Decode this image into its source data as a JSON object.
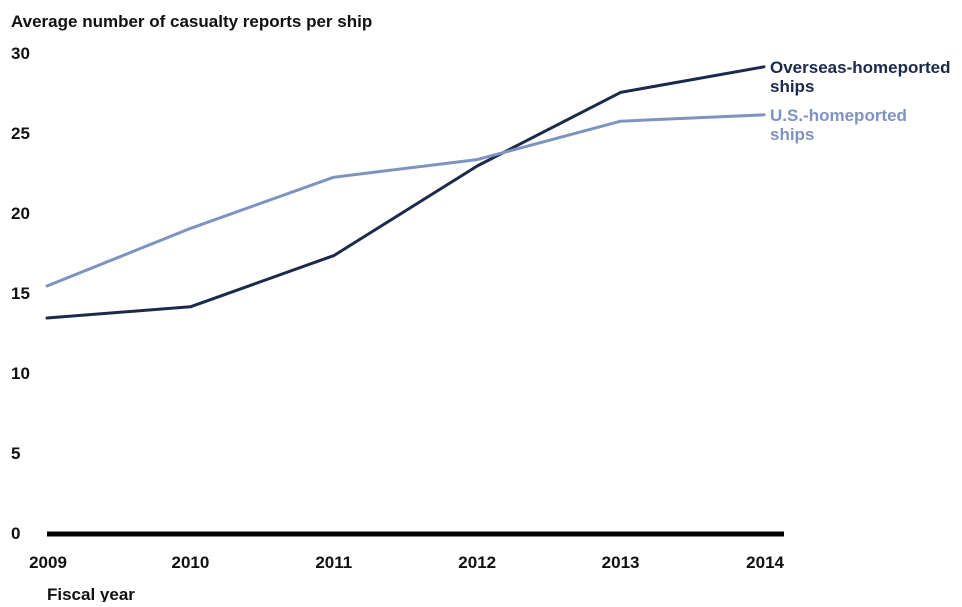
{
  "chart_data": {
    "type": "line",
    "ylabel": "Average number of casualty reports per ship",
    "xlabel": "Fiscal year",
    "x": [
      "2009",
      "2010",
      "2011",
      "2012",
      "2013",
      "2014"
    ],
    "yticks": [
      0,
      5,
      10,
      15,
      20,
      25,
      30
    ],
    "ylim": [
      0,
      30
    ],
    "grid": false,
    "series": [
      {
        "name_lines": [
          "Overseas-homeported",
          "ships"
        ],
        "color": "#1b2a4a",
        "values": [
          13.5,
          14.2,
          17.4,
          23.0,
          27.6,
          29.2
        ]
      },
      {
        "name_lines": [
          "U.S.-homeported",
          "ships"
        ],
        "color": "#7f93c1",
        "values": [
          15.5,
          19.1,
          22.3,
          23.4,
          25.8,
          26.2
        ]
      }
    ]
  }
}
